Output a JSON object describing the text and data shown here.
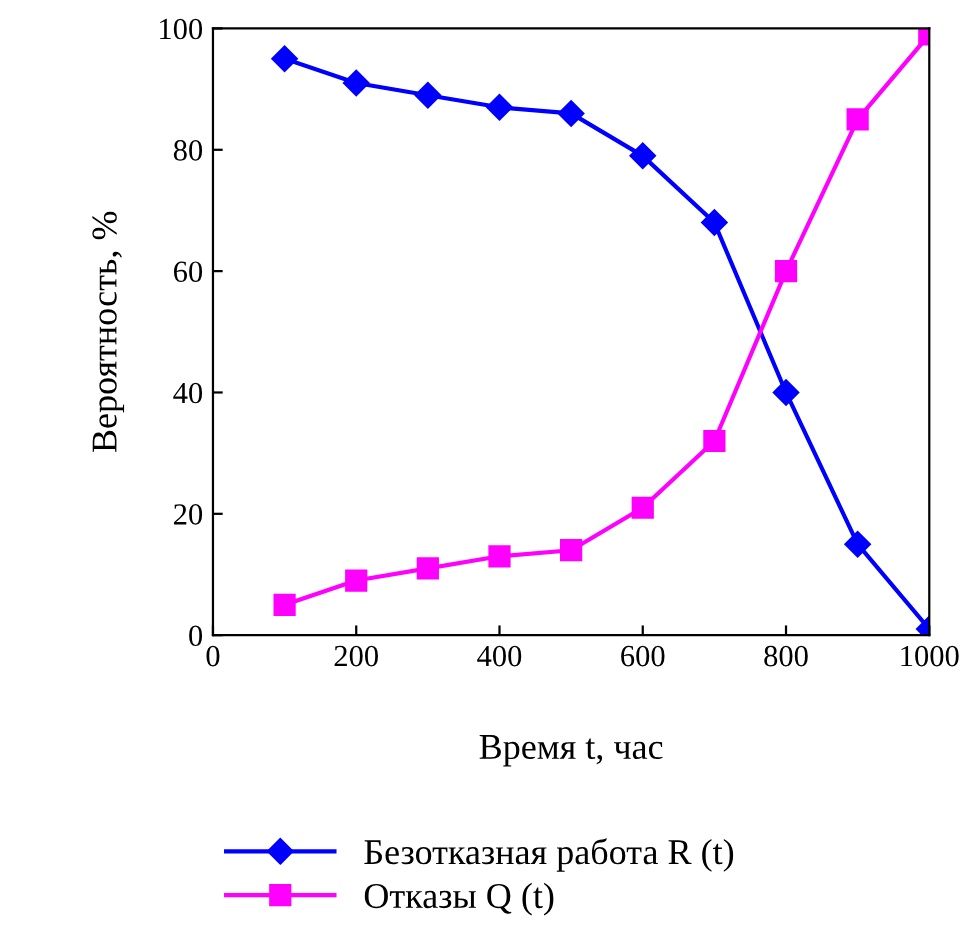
{
  "chart_data": {
    "type": "line",
    "xlabel": "Время t, час",
    "ylabel": "Вероятность, %",
    "x": [
      100,
      200,
      300,
      400,
      500,
      600,
      700,
      800,
      900,
      1000
    ],
    "series": [
      {
        "name": "Безотказная работа R (t)",
        "color": "#0000ff",
        "marker": "diamond",
        "values": [
          95,
          91,
          89,
          87,
          86,
          79,
          68,
          40,
          15,
          1
        ]
      },
      {
        "name": "Отказы Q (t)",
        "color": "#ff00ff",
        "marker": "square",
        "values": [
          5,
          9,
          11,
          13,
          14,
          21,
          32,
          60,
          85,
          99
        ]
      }
    ],
    "xlim": [
      0,
      1000
    ],
    "ylim": [
      0,
      100
    ],
    "xticks": [
      0,
      200,
      400,
      600,
      800,
      1000
    ],
    "yticks": [
      0,
      20,
      40,
      60,
      80,
      100
    ],
    "grid": false,
    "legend": "bottom",
    "line_style": "solid"
  }
}
